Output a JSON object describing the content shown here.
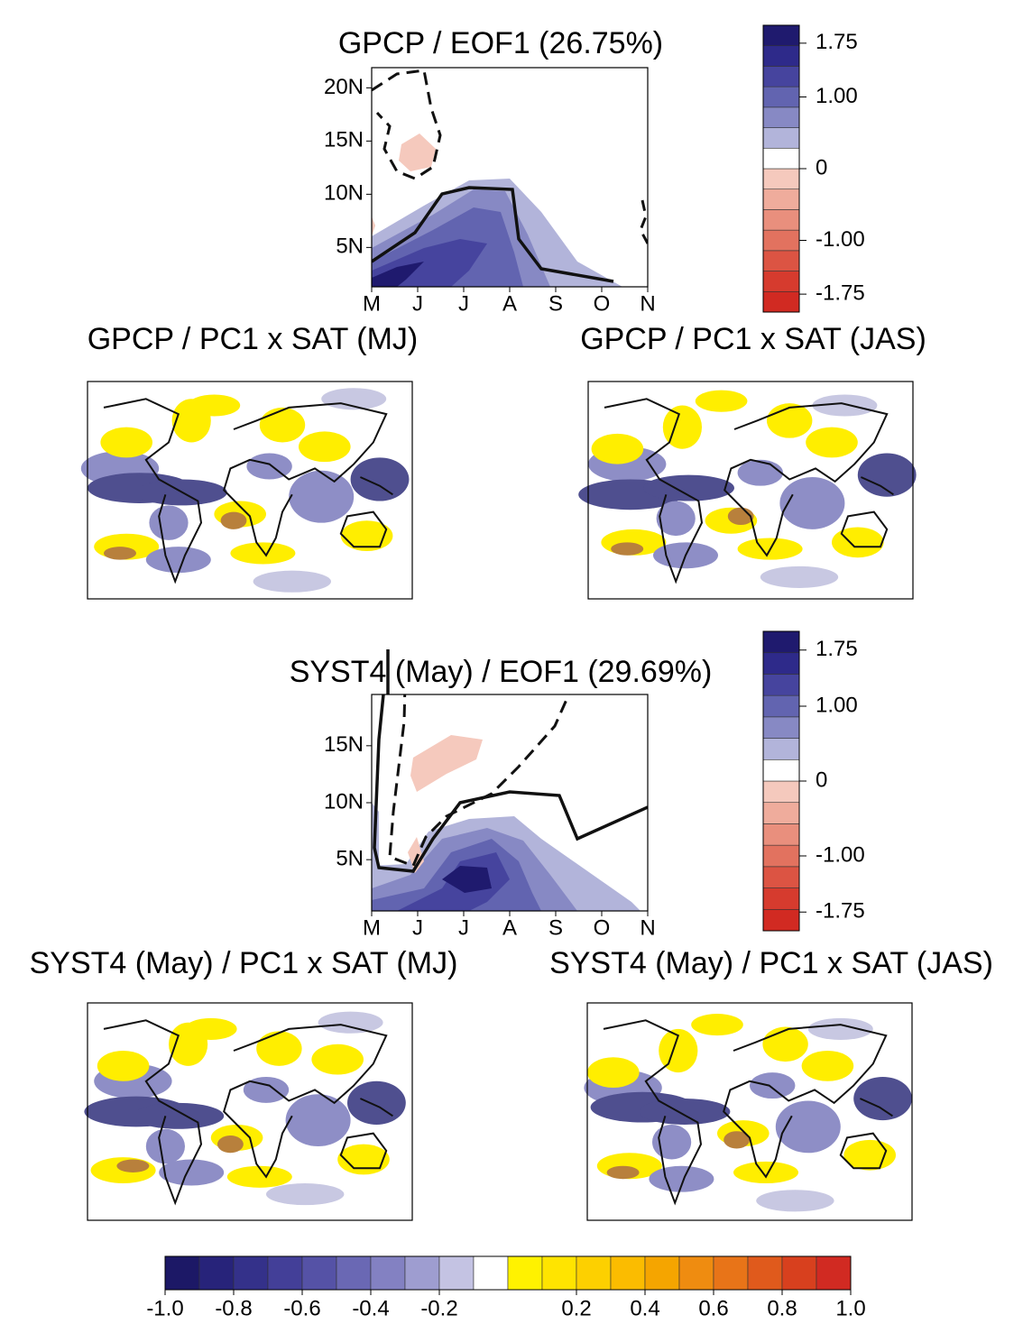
{
  "eof_panels": [
    {
      "title": "GPCP / EOF1 (26.75%)",
      "x_labels": [
        "M",
        "J",
        "J",
        "A",
        "S",
        "O",
        "N"
      ],
      "ylim": [
        1.3,
        21.9
      ],
      "yticks": [
        {
          "value": 5,
          "label": "5N"
        },
        {
          "value": 10,
          "label": "10N"
        },
        {
          "value": 15,
          "label": "15N"
        },
        {
          "value": 20,
          "label": "20N"
        }
      ]
    },
    {
      "title": "SYST4 (May) / EOF1 (29.69%)",
      "x_labels": [
        "M",
        "J",
        "J",
        "A",
        "S",
        "O",
        "N"
      ],
      "ylim": [
        0.5,
        19.5
      ],
      "yticks": [
        {
          "value": 5,
          "label": "5N"
        },
        {
          "value": 10,
          "label": "10N"
        },
        {
          "value": 15,
          "label": "15N"
        }
      ]
    }
  ],
  "eof_colorbars": [
    {
      "lim": [
        -2,
        2
      ],
      "colors": [
        "#d12a22",
        "#d63b2e",
        "#dc5443",
        "#e2725f",
        "#e98f7d",
        "#efac9c",
        "#f5c9bd",
        "#ffffff",
        "#b2b4da",
        "#8789c4",
        "#6264b0",
        "#46449e",
        "#2e2a8a",
        "#1f1a6e"
      ],
      "ticks": [
        1.75,
        {
          "value": 1,
          "label": "1.00"
        },
        0,
        {
          "value": -1,
          "label": "-1.00"
        },
        -1.75
      ]
    },
    {
      "lim": [
        -2,
        2
      ],
      "colors": [
        "#d12a22",
        "#d63b2e",
        "#dc5443",
        "#e2725f",
        "#e98f7d",
        "#efac9c",
        "#f5c9bd",
        "#ffffff",
        "#b2b4da",
        "#8789c4",
        "#6264b0",
        "#46449e",
        "#2e2a8a",
        "#1f1a6e"
      ],
      "ticks": [
        1.75,
        {
          "value": 1,
          "label": "1.00"
        },
        0,
        {
          "value": -1,
          "label": "-1.00"
        },
        -1.75
      ]
    }
  ],
  "maps": [
    {
      "title": "GPCP / PC1 x SAT (MJ)"
    },
    {
      "title": "GPCP / PC1 x SAT (JAS)"
    },
    {
      "title": "SYST4 (May) / PC1 x SAT (MJ)"
    },
    {
      "title": "SYST4 (May) / PC1 x SAT (JAS)"
    }
  ],
  "sat_colorbar": {
    "lim": [
      -1,
      1
    ],
    "colors": [
      "#1c1866",
      "#27237a",
      "#34318a",
      "#433f98",
      "#5552a6",
      "#6a68b4",
      "#8381c2",
      "#9e9dd0",
      "#c4c3e3",
      "#ffffff",
      "#fff200",
      "#ffe400",
      "#fdd000",
      "#fbbc00",
      "#f5a500",
      "#ef8c10",
      "#e87418",
      "#e05a1c",
      "#d8401e",
      "#d12a22"
    ],
    "ticks": [
      {
        "value": -1,
        "label": "-1.0"
      },
      -0.8,
      -0.6,
      -0.4,
      -0.2,
      0.2,
      0.4,
      0.6,
      0.8,
      {
        "value": 1,
        "label": "1.0"
      }
    ]
  }
}
